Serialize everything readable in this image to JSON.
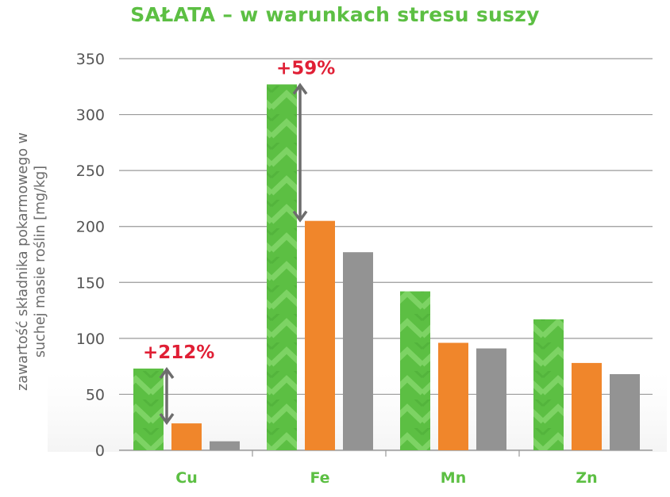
{
  "chart_data": {
    "type": "bar",
    "title": "SAŁATA – w warunkach stresu suszy",
    "ylabel_lines": [
      "zawartość składnika pokarmowego w",
      "suchej masie roślin [mg/kg]"
    ],
    "xlabel": "",
    "ylim": [
      0,
      350
    ],
    "yticks": [
      0,
      50,
      100,
      150,
      200,
      250,
      300,
      350
    ],
    "grid": true,
    "categories": [
      "Cu",
      "Fe",
      "Mn",
      "Zn"
    ],
    "series": [
      {
        "values": [
          73,
          327,
          142,
          117
        ],
        "color": "#5cbf43",
        "pattern": "chevron"
      },
      {
        "values": [
          24,
          205,
          96,
          78
        ],
        "color": "#f0862b"
      },
      {
        "values": [
          8,
          177,
          91,
          68
        ],
        "color": "#939393"
      }
    ],
    "annotations": [
      {
        "category": "Cu",
        "text": "+212%",
        "from": 24,
        "to": 73
      },
      {
        "category": "Fe",
        "text": "+59%",
        "from": 205,
        "to": 327
      }
    ],
    "colors": {
      "title": "#5cbf43",
      "category_labels": "#5cbf43",
      "annotation": "#e01f35",
      "arrow": "#6d6d6d",
      "grid": "#9a9a9a"
    }
  }
}
